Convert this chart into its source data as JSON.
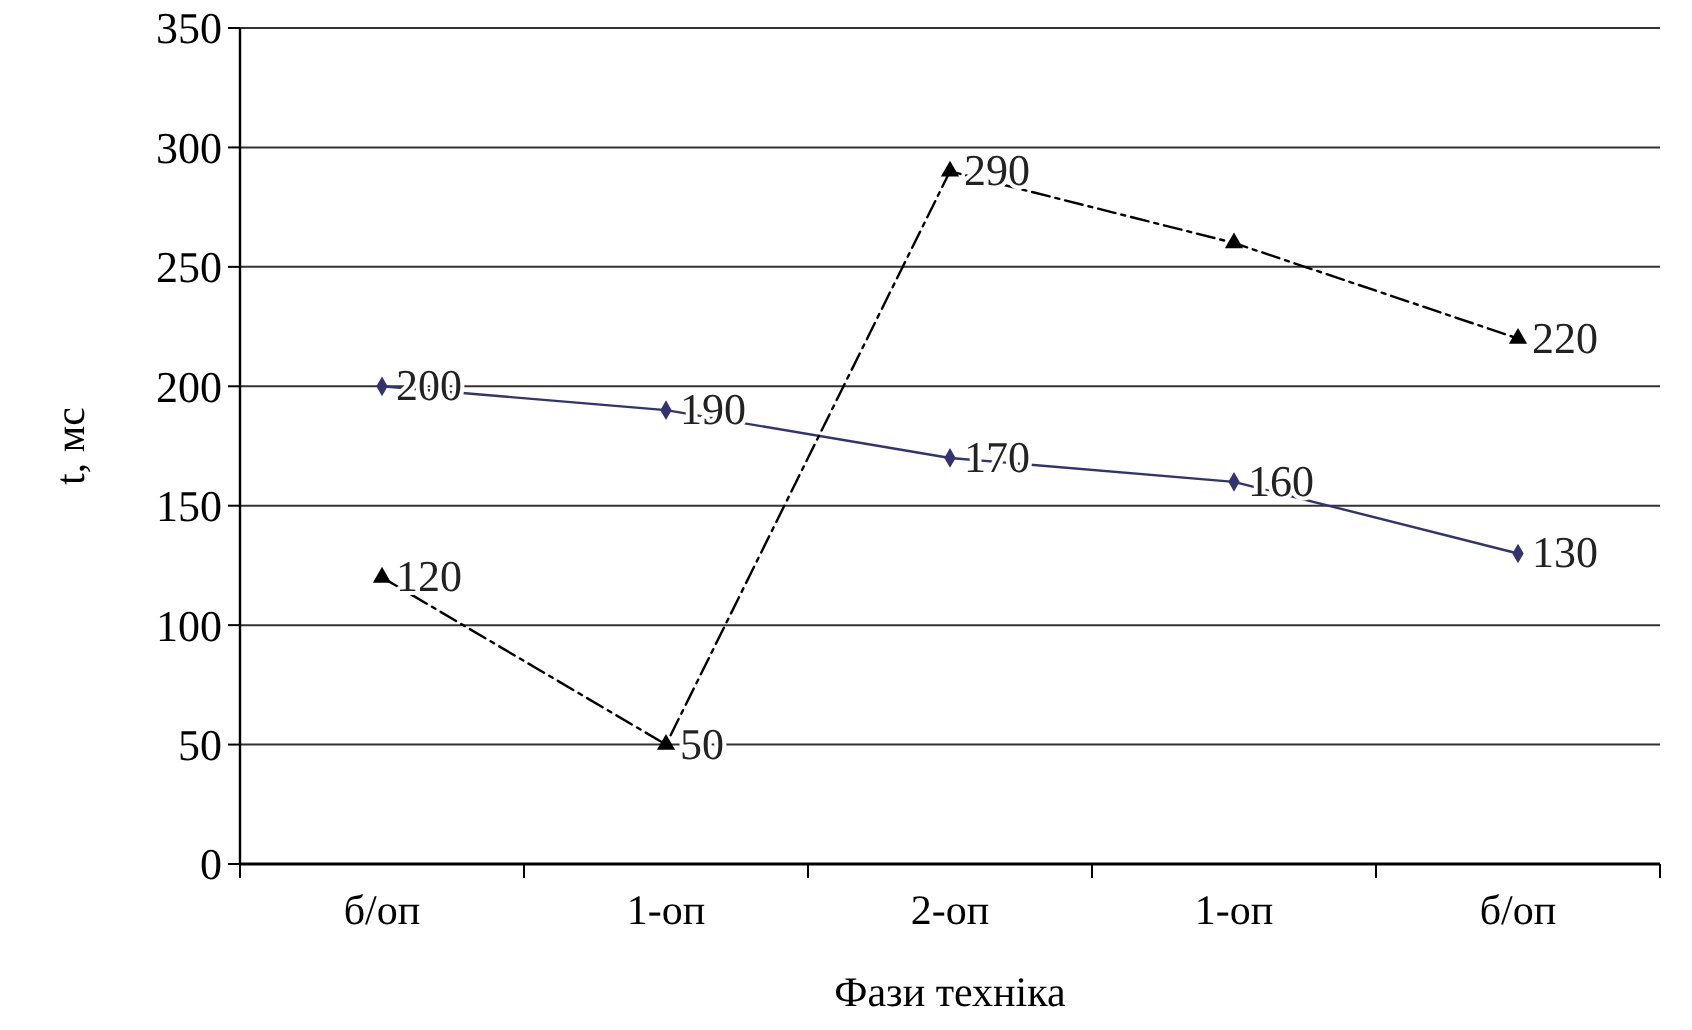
{
  "chart_data": {
    "type": "line",
    "xlabel": "Фази техніка",
    "ylabel": "t, мс",
    "categories": [
      "б/оп",
      "1-оп",
      "2-оп",
      "1-оп",
      "б/оп"
    ],
    "series": [
      {
        "color": "#333370",
        "values": [
          200,
          190,
          170,
          160,
          130
        ],
        "marker": "diamond",
        "line_style": "solid",
        "value_labels": [
          "200",
          "190",
          "170",
          "160",
          "130"
        ]
      },
      {
        "color": "#000000",
        "values": [
          120,
          50,
          290,
          260,
          220
        ],
        "marker": "triangle",
        "line_style": "dashed",
        "value_labels": [
          "120",
          "50",
          "290",
          null,
          "220"
        ]
      }
    ],
    "ylim": [
      0,
      350
    ],
    "yticks": [
      0,
      50,
      100,
      150,
      200,
      250,
      300,
      350
    ],
    "grid": "y"
  }
}
